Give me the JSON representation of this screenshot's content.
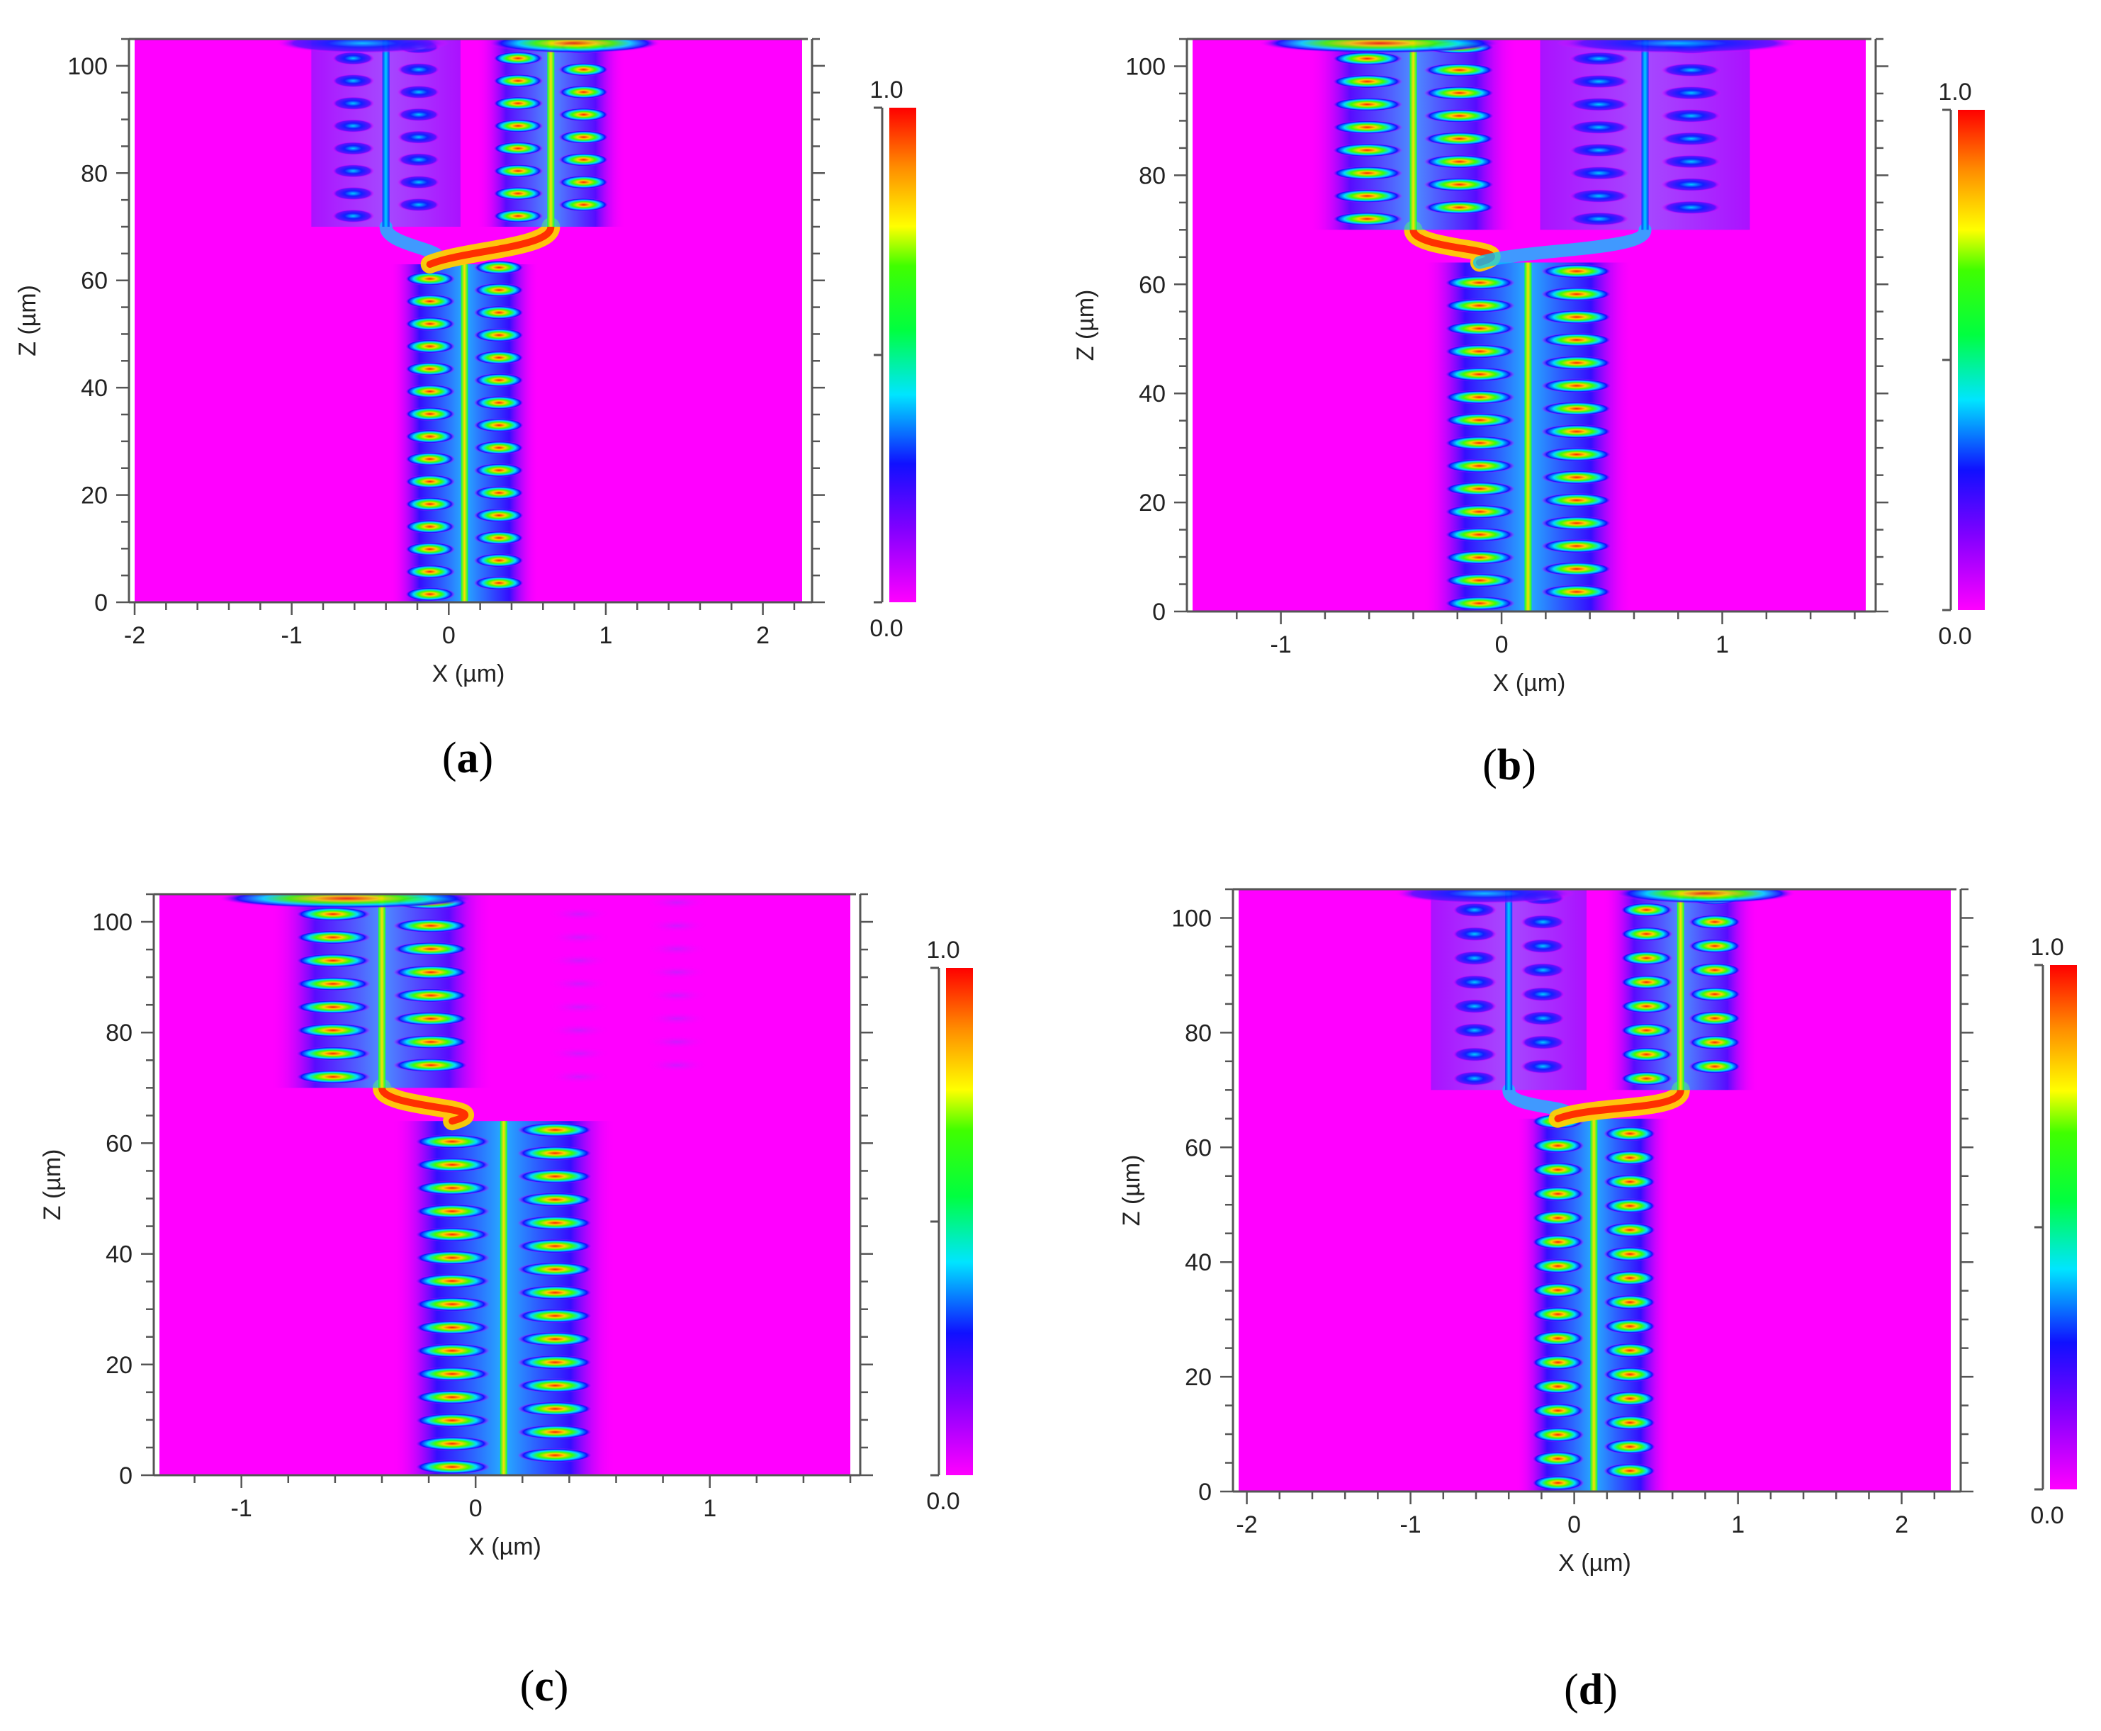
{
  "colorbar_colors": [
    "#ff00ff",
    "#1010ff",
    "#00e5ff",
    "#00ff20",
    "#ffff00",
    "#ff8c00",
    "#ff0000"
  ],
  "background_color": "#ff00ff",
  "chart_data": [
    {
      "type": "heatmap",
      "panel_label": "a",
      "xlabel": "X (µm)",
      "ylabel": "Z (µm)",
      "xlim": [
        -2,
        2.25
      ],
      "ylim": [
        0,
        105
      ],
      "xticks": [
        -2,
        -1,
        0,
        1,
        2
      ],
      "yticks": [
        0,
        20,
        40,
        60,
        80,
        100
      ],
      "colorbar": {
        "min_label": "0.0",
        "max_label": "1.0",
        "min": 0.0,
        "max": 1.0
      },
      "input_waveguide": {
        "x_center": 0.1,
        "z_start": 0,
        "z_end": 63
      },
      "output_waveguides": [
        {
          "x_center": -0.4,
          "intensity": 0.3
        },
        {
          "x_center": 0.65,
          "intensity": 1.0
        }
      ],
      "split_z": 70
    },
    {
      "type": "heatmap",
      "panel_label": "b",
      "xlabel": "X (µm)",
      "ylabel": "Z (µm)",
      "xlim": [
        -1.4,
        1.65
      ],
      "ylim": [
        0,
        105
      ],
      "xticks": [
        -1,
        0,
        1
      ],
      "yticks": [
        0,
        20,
        40,
        60,
        80,
        100
      ],
      "colorbar": {
        "min_label": "0.0",
        "max_label": "1.0",
        "min": 0.0,
        "max": 1.0
      },
      "input_waveguide": {
        "x_center": 0.12,
        "z_start": 0,
        "z_end": 64
      },
      "output_waveguides": [
        {
          "x_center": -0.4,
          "intensity": 1.0
        },
        {
          "x_center": 0.65,
          "intensity": 0.2
        }
      ],
      "split_z": 70
    },
    {
      "type": "heatmap",
      "panel_label": "c",
      "xlabel": "X (µm)",
      "ylabel": "Z (µm)",
      "xlim": [
        -1.35,
        1.6
      ],
      "ylim": [
        0,
        105
      ],
      "xticks": [
        -1,
        0,
        1
      ],
      "yticks": [
        0,
        20,
        40,
        60,
        80,
        100
      ],
      "colorbar": {
        "min_label": "0.0",
        "max_label": "1.0",
        "min": 0.0,
        "max": 1.0
      },
      "input_waveguide": {
        "x_center": 0.12,
        "z_start": 0,
        "z_end": 64
      },
      "output_waveguides": [
        {
          "x_center": -0.4,
          "intensity": 1.0
        },
        {
          "x_center": 0.65,
          "intensity": 0.05
        }
      ],
      "split_z": 70
    },
    {
      "type": "heatmap",
      "panel_label": "d",
      "xlabel": "X (µm)",
      "ylabel": "Z (µm)",
      "xlim": [
        -2.05,
        2.3
      ],
      "ylim": [
        0,
        105
      ],
      "xticks": [
        -2,
        -1,
        0,
        1,
        2
      ],
      "yticks": [
        0,
        20,
        40,
        60,
        80,
        100
      ],
      "colorbar": {
        "min_label": "0.0",
        "max_label": "1.0",
        "min": 0.0,
        "max": 1.0
      },
      "input_waveguide": {
        "x_center": 0.12,
        "z_start": 0,
        "z_end": 65
      },
      "output_waveguides": [
        {
          "x_center": -0.4,
          "intensity": 0.55
        },
        {
          "x_center": 0.65,
          "intensity": 1.0
        }
      ],
      "split_z": 70
    }
  ]
}
